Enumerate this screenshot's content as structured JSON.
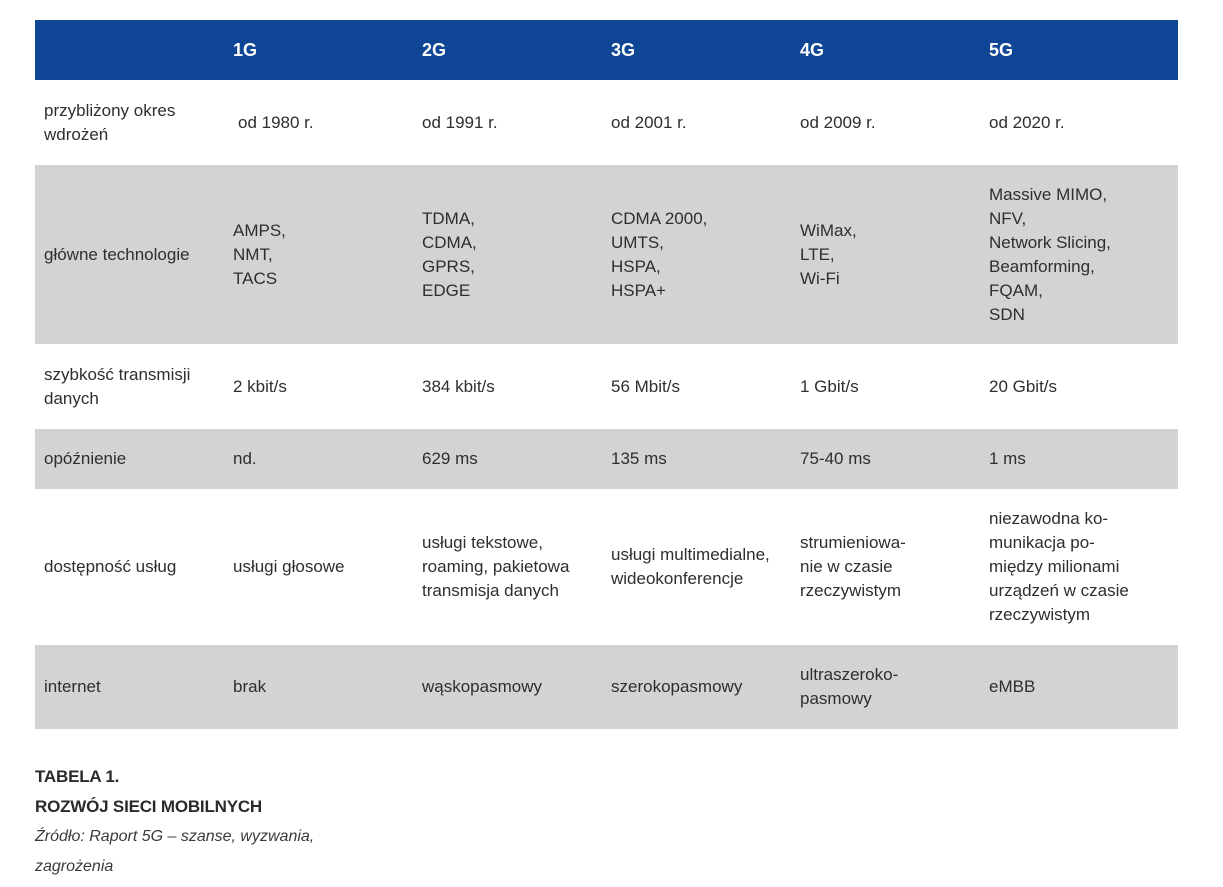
{
  "colors": {
    "header_bg": "#0e4594",
    "header_text": "#ffffff",
    "stripe_gray": "#d1d3d5",
    "text": "#2e2e2e"
  },
  "table": {
    "headers": [
      "",
      "1G",
      "2G",
      "3G",
      "4G",
      "5G"
    ],
    "rows": [
      {
        "label": "przybliżony okres\nwdrożeń",
        "cells": [
          "od 1980 r.",
          "od 1991 r.",
          "od 2001 r.",
          "od 2009 r.",
          "od 2020 r."
        ]
      },
      {
        "label": "główne technologie",
        "cells": [
          "AMPS,\nNMT,\nTACS",
          "TDMA,\nCDMA,\nGPRS,\nEDGE",
          "CDMA 2000,\nUMTS,\nHSPA,\nHSPA+",
          "WiMax,\nLTE,\nWi-Fi",
          "Massive MIMO,\nNFV,\nNetwork Slicing,\nBeamforming,\nFQAM,\nSDN"
        ]
      },
      {
        "label": "szybkość transmisji\ndanych",
        "cells": [
          "2 kbit/s",
          "384 kbit/s",
          "56 Mbit/s",
          "1 Gbit/s",
          "20 Gbit/s"
        ]
      },
      {
        "label": "opóźnienie",
        "cells": [
          "nd.",
          "629 ms",
          "135 ms",
          "75-40 ms",
          "1 ms"
        ]
      },
      {
        "label": "dostępność usług",
        "cells": [
          "usługi głosowe",
          "usługi tekstowe,\nroaming, pakietowa\ntransmisja danych",
          "usługi multimedialne,\nwideokonferencje",
          "strumieniowa-\nnie w czasie\nrzeczywistym",
          "niezawodna ko-\nmunikacja po-\nmiędzy milionami\nurządzeń w czasie\nrzeczywistym"
        ]
      },
      {
        "label": "internet",
        "cells": [
          "brak",
          "wąskopasmowy",
          "szerokopasmowy",
          "ultraszeroko-\npasmowy",
          "eMBB"
        ]
      }
    ]
  },
  "caption": {
    "number": "TABELA 1.",
    "title": "ROZWÓJ SIECI MOBILNYCH",
    "source": "Źródło: Raport 5G – szanse, wyzwania,\nzagrożenia"
  }
}
